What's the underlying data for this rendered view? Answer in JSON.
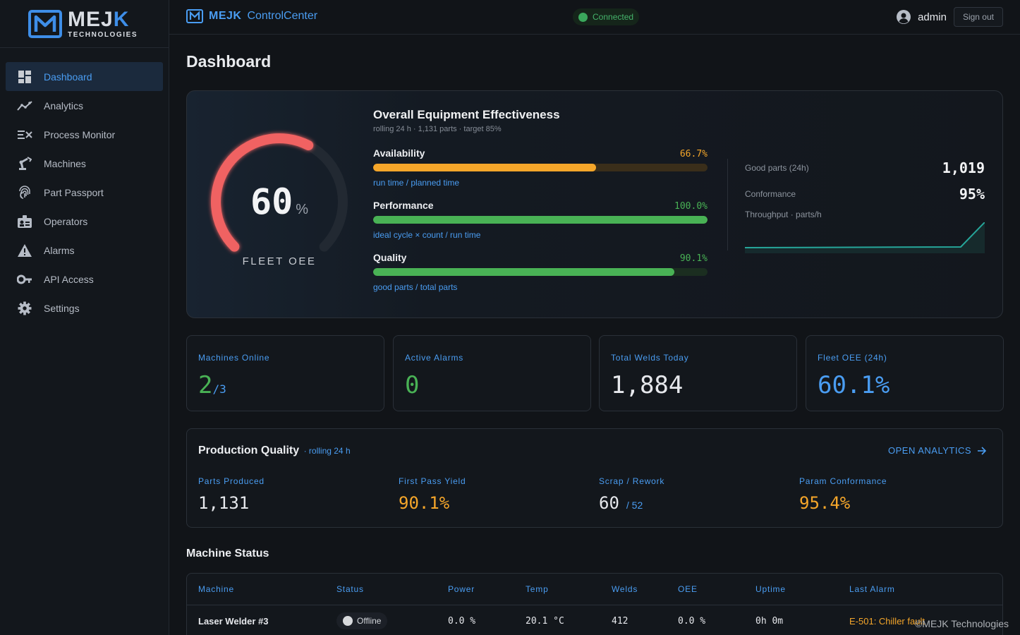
{
  "logo": {
    "title_main": "MEJ",
    "title_accent": "K",
    "subtitle": "TECHNOLOGIES"
  },
  "sidebar": {
    "items": [
      {
        "label": "Dashboard",
        "icon": "dashboard-icon",
        "active": true
      },
      {
        "label": "Analytics",
        "icon": "analytics-icon"
      },
      {
        "label": "Process Monitor",
        "icon": "process-monitor-icon"
      },
      {
        "label": "Machines",
        "icon": "robot-arm-icon"
      },
      {
        "label": "Part Passport",
        "icon": "fingerprint-icon"
      },
      {
        "label": "Operators",
        "icon": "id-badge-icon"
      },
      {
        "label": "Alarms",
        "icon": "warning-icon"
      },
      {
        "label": "API Access",
        "icon": "key-icon"
      },
      {
        "label": "Settings",
        "icon": "gear-icon"
      }
    ]
  },
  "topbar": {
    "brand_main": "MEJK",
    "brand_app": "ControlCenter",
    "connection": "Connected",
    "user": "admin",
    "sign_out": "Sign out"
  },
  "page_title": "Dashboard",
  "oee": {
    "gauge_value": "60",
    "gauge_value_num": 60.1,
    "gauge_unit": "%",
    "gauge_label": "FLEET OEE",
    "title": "Overall Equipment Effectiveness",
    "subtitle": "rolling 24 h · 1,131 parts · target 85%",
    "metrics": [
      {
        "name": "Availability",
        "value": "66.7%",
        "fraction": 0.667,
        "formula": "run time / planned time",
        "color": "#f5a62a"
      },
      {
        "name": "Performance",
        "value": "100.0%",
        "fraction": 1.0,
        "formula": "ideal cycle × count / run time",
        "color": "#49b255"
      },
      {
        "name": "Quality",
        "value": "90.1%",
        "fraction": 0.901,
        "formula": "good parts / total parts",
        "color": "#49b255"
      }
    ],
    "side_stats": {
      "good_parts_label": "Good parts (24h)",
      "good_parts_value": "1,019",
      "conformance_label": "Conformance",
      "conformance_value": "95%",
      "throughput_label": "Throughput · parts/h"
    }
  },
  "kpis": [
    {
      "label": "Machines Online",
      "value": "2",
      "sub": "/3",
      "color": "#49b255"
    },
    {
      "label": "Active Alarms",
      "value": "0",
      "sub": "",
      "color": "#49b255"
    },
    {
      "label": "Total Welds Today",
      "value": "1,884",
      "sub": "",
      "color": "#e6e8ec"
    },
    {
      "label": "Fleet OEE (24h)",
      "value": "60.1%",
      "sub": "",
      "color": "#4a9df2"
    }
  ],
  "production_quality": {
    "title": "Production Quality",
    "subtitle": "· rolling 24 h",
    "link": "OPEN ANALYTICS",
    "cells": [
      {
        "label": "Parts Produced",
        "value": "1,131",
        "extra": "",
        "color": "#e6e8ec"
      },
      {
        "label": "First Pass Yield",
        "value": "90.1%",
        "extra": "",
        "color": "#f5a62a"
      },
      {
        "label": "Scrap / Rework",
        "value": "60",
        "extra": "/ 52",
        "color": "#e6e8ec"
      },
      {
        "label": "Param Conformance",
        "value": "95.4%",
        "extra": "",
        "color": "#f5a62a"
      }
    ]
  },
  "machine_status": {
    "title": "Machine Status",
    "columns": [
      "Machine",
      "Status",
      "Power",
      "Temp",
      "Welds",
      "OEE",
      "Uptime",
      "Last Alarm"
    ],
    "rows": [
      {
        "machine": "Laser Welder #3",
        "status": "Offline",
        "power": "0.0 %",
        "temp": "20.1 °C",
        "welds": "412",
        "oee": "0.0 %",
        "uptime": "0h 0m",
        "last_alarm": "E-501: Chiller fault",
        "alarm_color": "#f5a62a"
      }
    ]
  },
  "watermark": "©MEJK Technologies"
}
